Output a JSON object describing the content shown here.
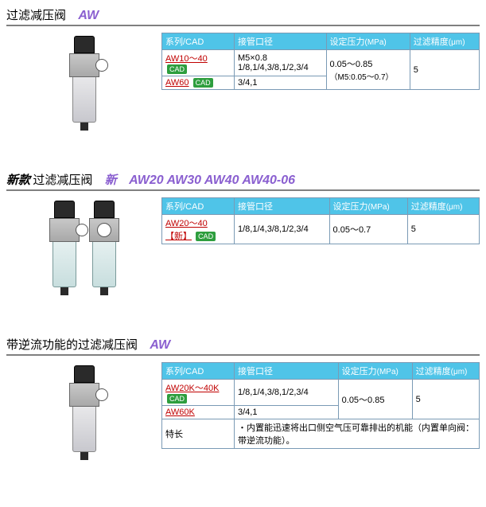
{
  "colors": {
    "header_bg": "#4fc4e8",
    "header_text": "#ffffff",
    "border": "#7a9ab5",
    "title_rule": "#808080",
    "model_text": "#8a5fd0",
    "link_red": "#c00000",
    "cad_bg": "#2e9e3e"
  },
  "columns": {
    "series": "系列/CAD",
    "port": "接管口径",
    "pressure": "设定压力",
    "pressure_unit": "(MPa)",
    "filtration": "过滤精度",
    "filtration_unit": "(μm)"
  },
  "cad_label": "CAD",
  "sections": [
    {
      "title": "过滤减压阀",
      "model": "AW",
      "rows": [
        {
          "series": "AW10～40",
          "port": "M5×0.8\n1/8,1/4,3/8,1/2,3/4",
          "pressure": "0.05～0.85",
          "pressure_note": "（M5:0.05～0.7）",
          "filtration": "5",
          "pressure_rowspan": 2,
          "filtration_rowspan": 2
        },
        {
          "series": "AW60",
          "port": "3/4,1"
        }
      ]
    },
    {
      "title_prefix": "新款",
      "title": "过滤减压阀",
      "new_label": "新",
      "model": "AW20 AW30 AW40 AW40-06",
      "rows": [
        {
          "series": "AW20～40【新】",
          "port": "1/8,1/4,3/8,1/2,3/4",
          "pressure": "0.05～0.7",
          "filtration": "5"
        }
      ]
    },
    {
      "title": "带逆流功能的过滤减压阀",
      "model": "AW",
      "rows": [
        {
          "series": "AW20K～40K",
          "port": "1/8,1/4,3/8,1/2,3/4",
          "pressure": "0.05～0.85",
          "filtration": "5",
          "pressure_rowspan": 2,
          "filtration_rowspan": 2
        },
        {
          "series": "AW60K",
          "port": "3/4,1"
        }
      ],
      "feature_label": "特长",
      "feature_text": "・内置能迅速将出口侧空气压可靠排出的机能（内置单向阀：带逆流功能）。"
    }
  ]
}
